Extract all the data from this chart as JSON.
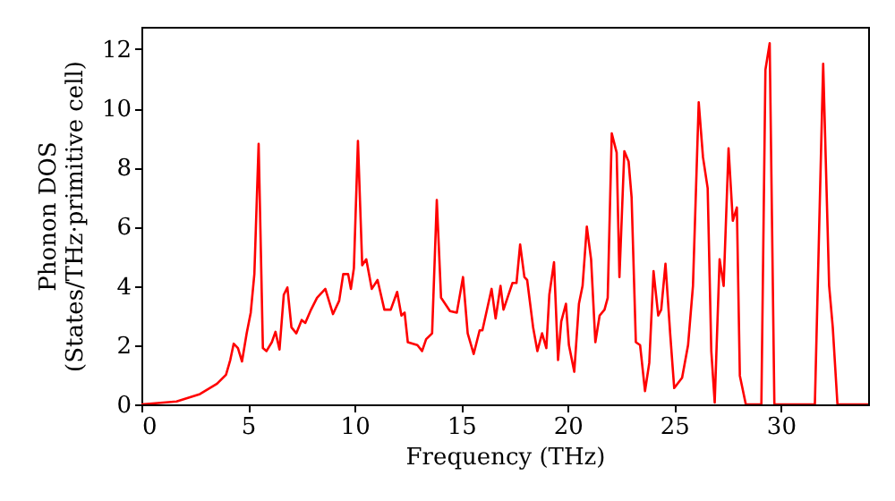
{
  "chart_data": {
    "type": "line",
    "xlabel": "Frequency (THz)",
    "ylabel": "Phonon DOS\n(States/THz·primitive cell)",
    "xlim": [
      0,
      34.1
    ],
    "ylim": [
      0,
      12.75
    ],
    "xticks": [
      0,
      5,
      10,
      15,
      20,
      25,
      30
    ],
    "yticks": [
      0,
      2,
      4,
      6,
      8,
      10,
      12
    ],
    "grid": false,
    "series": [
      {
        "color": "#ff0000",
        "x": [
          0,
          1.65,
          2.75,
          3.55,
          3.97,
          4.17,
          4.33,
          4.53,
          4.72,
          4.94,
          5.13,
          5.3,
          5.5,
          5.7,
          5.87,
          6.12,
          6.29,
          6.48,
          6.68,
          6.85,
          7.04,
          7.27,
          7.52,
          7.69,
          7.96,
          8.24,
          8.63,
          8.99,
          9.28,
          9.47,
          9.7,
          9.83,
          9.97,
          10.16,
          10.36,
          10.55,
          10.81,
          11.08,
          11.4,
          11.7,
          12.0,
          12.2,
          12.35,
          12.5,
          12.95,
          13.17,
          13.36,
          13.64,
          13.86,
          14.06,
          14.48,
          14.8,
          15.09,
          15.31,
          15.59,
          15.87,
          16.0,
          16.43,
          16.62,
          16.85,
          16.99,
          17.41,
          17.6,
          17.77,
          17.97,
          18.1,
          18.38,
          18.58,
          18.8,
          19.0,
          19.14,
          19.36,
          19.55,
          19.7,
          19.92,
          20.06,
          20.31,
          20.53,
          20.7,
          20.9,
          21.1,
          21.3,
          21.5,
          21.73,
          21.88,
          22.07,
          22.3,
          22.43,
          22.66,
          22.86,
          23.0,
          23.2,
          23.4,
          23.63,
          23.83,
          24.03,
          24.25,
          24.39,
          24.59,
          24.81,
          25.0,
          25.37,
          25.65,
          25.88,
          26.15,
          26.35,
          26.57,
          26.74,
          26.9,
          27.13,
          27.32,
          27.55,
          27.75,
          27.94,
          28.08,
          28.36,
          29.09,
          29.28,
          29.48,
          29.7,
          31.6,
          31.99,
          32.27,
          32.44,
          32.66,
          34.1
        ],
        "values": [
          0,
          0.1,
          0.35,
          0.7,
          1.0,
          1.5,
          2.05,
          1.9,
          1.45,
          2.4,
          3.1,
          4.4,
          8.8,
          1.9,
          1.8,
          2.1,
          2.45,
          1.85,
          3.7,
          3.95,
          2.6,
          2.4,
          2.85,
          2.75,
          3.2,
          3.6,
          3.9,
          3.05,
          3.5,
          4.4,
          4.4,
          3.9,
          4.6,
          8.9,
          4.7,
          4.9,
          3.9,
          4.2,
          3.2,
          3.2,
          3.8,
          3.0,
          3.1,
          2.1,
          2.0,
          1.8,
          2.2,
          2.4,
          6.9,
          3.6,
          3.15,
          3.1,
          4.3,
          2.4,
          1.7,
          2.5,
          2.5,
          3.9,
          2.9,
          4.0,
          3.2,
          4.1,
          4.1,
          5.4,
          4.3,
          4.2,
          2.6,
          1.8,
          2.4,
          1.9,
          3.7,
          4.8,
          1.5,
          2.8,
          3.4,
          2.0,
          1.1,
          3.4,
          4.0,
          6.0,
          4.9,
          2.1,
          3.0,
          3.2,
          3.6,
          9.15,
          8.5,
          4.3,
          8.55,
          8.2,
          7.0,
          2.1,
          2.0,
          0.45,
          1.4,
          4.5,
          3.0,
          3.2,
          4.75,
          2.4,
          0.55,
          0.9,
          2.0,
          4.0,
          10.2,
          8.35,
          7.3,
          1.8,
          0.06,
          4.9,
          4.0,
          8.65,
          6.2,
          6.65,
          0.97,
          0,
          0,
          11.3,
          12.2,
          0,
          0,
          11.5,
          4.0,
          2.6,
          0,
          0
        ]
      }
    ]
  }
}
